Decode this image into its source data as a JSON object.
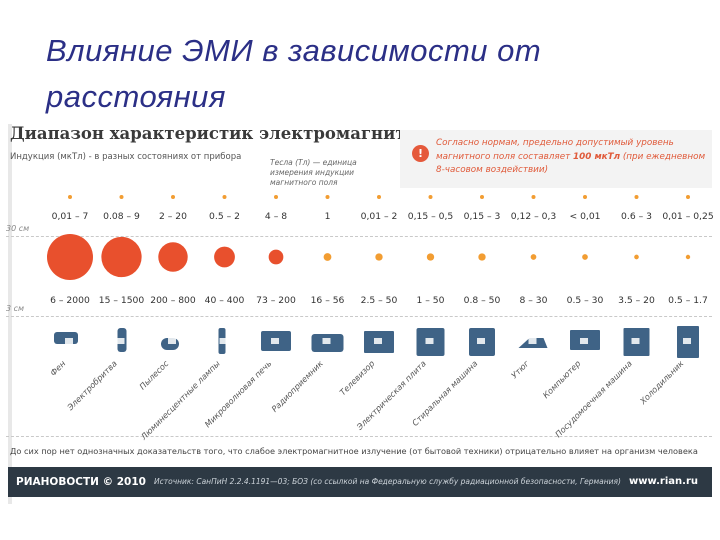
{
  "slide": {
    "title": "Влияние ЭМИ в зависимости от расстояния"
  },
  "chart_data": {
    "type": "bubble-range",
    "title": "Диапазон характеристик электромагнитного поля",
    "subtitle": "Индукция (мкТл) - в разных состояниях от прибора",
    "unit_note": "Тесла (Тл) — единица измерения индукции магнитного поля",
    "distances": [
      "30 см",
      "3 см"
    ],
    "appliances": [
      {
        "name": "Фен",
        "far": "0,01 – 7",
        "far_low": 0.01,
        "far_high": 7,
        "near": "6 – 2000",
        "near_low": 6,
        "near_high": 2000
      },
      {
        "name": "Электробритва",
        "far": "0.08 – 9",
        "far_low": 0.08,
        "far_high": 9,
        "near": "15 – 1500",
        "near_low": 15,
        "near_high": 1500
      },
      {
        "name": "Пылесос",
        "far": "2 – 20",
        "far_low": 2,
        "far_high": 20,
        "near": "200 – 800",
        "near_low": 200,
        "near_high": 800
      },
      {
        "name": "Люминесцентные лампы",
        "far": "0.5 – 2",
        "far_low": 0.5,
        "far_high": 2,
        "near": "40 – 400",
        "near_low": 40,
        "near_high": 400
      },
      {
        "name": "Микроволновая печь",
        "far": "4 – 8",
        "far_low": 4,
        "far_high": 8,
        "near": "73 – 200",
        "near_low": 73,
        "near_high": 200
      },
      {
        "name": "Радиоприемник",
        "far": "1",
        "far_low": 1,
        "far_high": 1,
        "near": "16 – 56",
        "near_low": 16,
        "near_high": 56
      },
      {
        "name": "Телевизор",
        "far": "0,01 – 2",
        "far_low": 0.01,
        "far_high": 2,
        "near": "2.5 – 50",
        "near_low": 2.5,
        "near_high": 50
      },
      {
        "name": "Электрическая плита",
        "far": "0,15 – 0,5",
        "far_low": 0.15,
        "far_high": 0.5,
        "near": "1 – 50",
        "near_low": 1,
        "near_high": 50
      },
      {
        "name": "Стиральная машина",
        "far": "0,15 – 3",
        "far_low": 0.15,
        "far_high": 3,
        "near": "0.8 – 50",
        "near_low": 0.8,
        "near_high": 50
      },
      {
        "name": "Утюг",
        "far": "0,12 – 0,3",
        "far_low": 0.12,
        "far_high": 0.3,
        "near": "8 – 30",
        "near_low": 8,
        "near_high": 30
      },
      {
        "name": "Компьютер",
        "far": "< 0,01",
        "far_low": 0,
        "far_high": 0.01,
        "near": "0.5 – 30",
        "near_low": 0.5,
        "near_high": 30
      },
      {
        "name": "Посудомоечная машина",
        "far": "0.6 – 3",
        "far_low": 0.6,
        "far_high": 3,
        "near": "3.5 – 20",
        "near_low": 3.5,
        "near_high": 20
      },
      {
        "name": "Холодильник",
        "far": "0,01 – 0,25",
        "far_low": 0.01,
        "far_high": 0.25,
        "near": "0.5 – 1.7",
        "near_low": 0.5,
        "near_high": 1.7
      }
    ],
    "colors": {
      "bubble": "#e8502d",
      "bubble_small": "#f29d32",
      "icon": "#3f6386",
      "text": "#333333"
    }
  },
  "notice": {
    "icon": "!",
    "text_before": "Согласно нормам, предельно допустимый уровень магнитного поля составляет ",
    "limit": "100 мкТл",
    "text_after": " (при ежедневном 8-часовом воздействии)"
  },
  "bottom_text": "До сих пор нет однозначных доказательств того, что слабое электромагнитное излучение (от бытовой техники) отрицательно влияет на организм человека",
  "footer": {
    "brand": "РИАНОВОСТИ © 2010",
    "source": "Источник: СанПиН 2.2.4.1191—03; БОЗ (со ссылкой на Федеральную службу радиационной безопасности, Германия)",
    "url": "www.rian.ru"
  }
}
